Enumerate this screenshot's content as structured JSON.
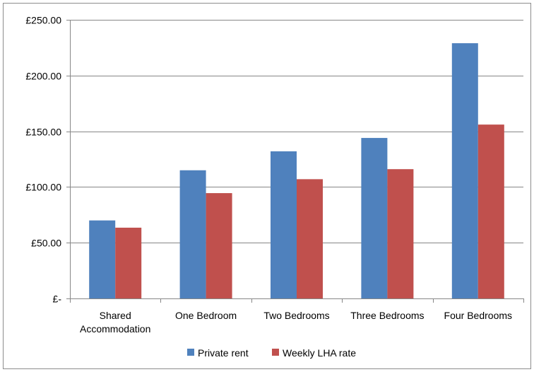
{
  "chart_data": {
    "type": "bar",
    "title": "",
    "xlabel": "",
    "ylabel": "",
    "categories": [
      [
        "Shared",
        "Accommodation"
      ],
      [
        "One Bedroom"
      ],
      [
        "Two Bedrooms"
      ],
      [
        "Three Bedrooms"
      ],
      [
        "Four Bedrooms"
      ]
    ],
    "series": [
      {
        "name": "Private rent",
        "color": "#4f81bd",
        "values": [
          70,
          115,
          132,
          144,
          229
        ]
      },
      {
        "name": "Weekly LHA rate",
        "color": "#c0504d",
        "values": [
          63.5,
          94.5,
          107,
          116,
          156
        ]
      }
    ],
    "ylim": [
      0,
      250
    ],
    "yticks": [
      0,
      50,
      100,
      150,
      200,
      250
    ],
    "ytick_labels": [
      "£-",
      "£50.00",
      "£100.00",
      "£150.00",
      "£200.00",
      "£250.00"
    ],
    "grid": true,
    "legend_position": "bottom"
  }
}
